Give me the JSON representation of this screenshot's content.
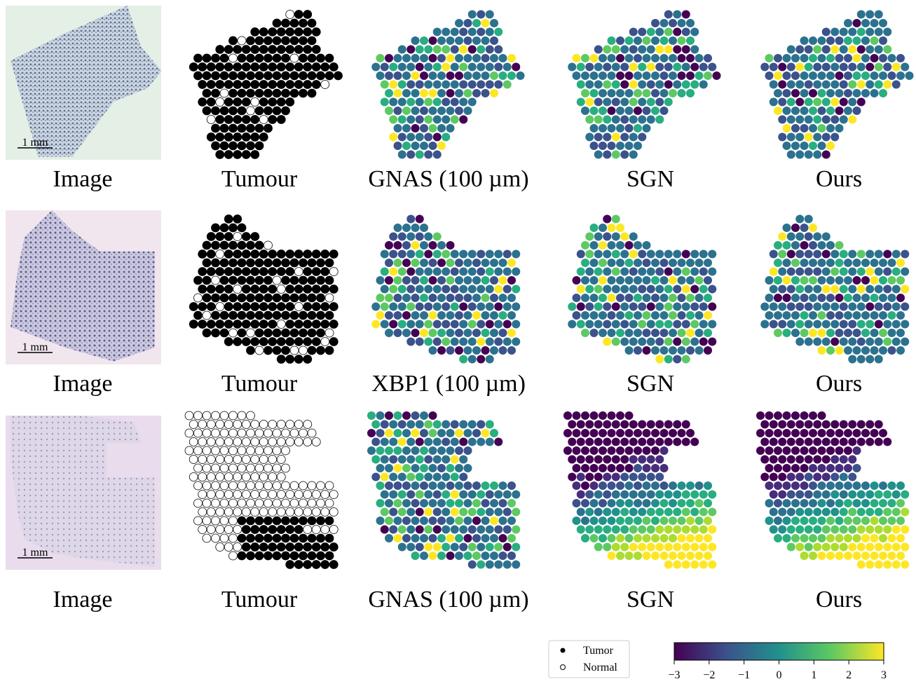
{
  "rows": [
    {
      "captions": [
        "Image",
        "Tumour",
        "GNAS (100 µm)",
        "SGN",
        "Ours"
      ],
      "scale_bar": "1 mm"
    },
    {
      "captions": [
        "Image",
        "Tumour",
        "XBP1 (100 µm)",
        "SGN",
        "Ours"
      ],
      "scale_bar": "1 mm"
    },
    {
      "captions": [
        "Image",
        "Tumour",
        "GNAS (100 µm)",
        "SGN",
        "Ours"
      ],
      "scale_bar": "1 mm"
    }
  ],
  "legend": {
    "entries": [
      "Tumor",
      "Normal"
    ]
  },
  "colorbar": {
    "lim": [
      -3,
      3
    ],
    "ticks": [
      {
        "value": -3,
        "label": "−3"
      },
      {
        "value": -2,
        "label": "−2"
      },
      {
        "value": -1,
        "label": "−1"
      },
      0,
      1,
      2,
      3
    ]
  }
}
